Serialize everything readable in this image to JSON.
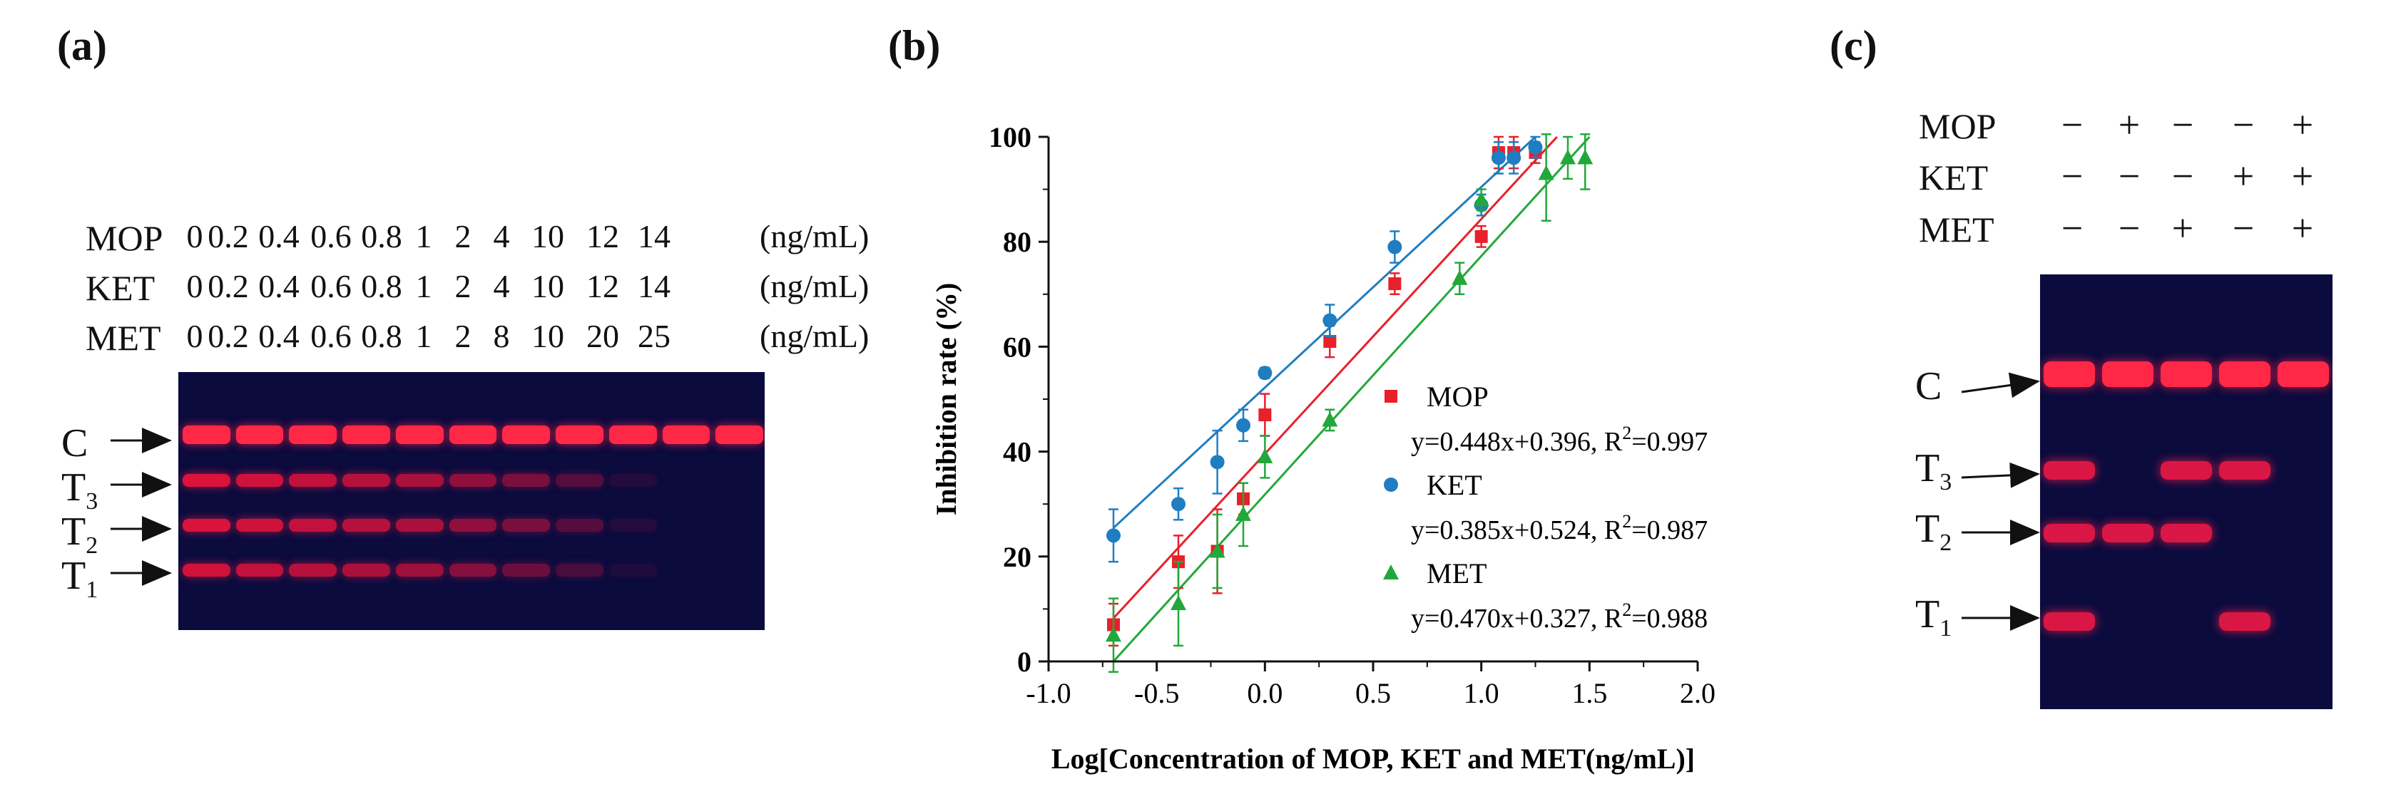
{
  "panels": {
    "a": {
      "label": "(a)",
      "rows": [
        {
          "name": "MOP",
          "values": [
            "0",
            "0.2",
            "0.4",
            "0.6",
            "0.8",
            "1",
            "2",
            "4",
            "10",
            "12",
            "14"
          ],
          "unit": "(ng/mL)"
        },
        {
          "name": "KET",
          "values": [
            "0",
            "0.2",
            "0.4",
            "0.6",
            "0.8",
            "1",
            "2",
            "4",
            "10",
            "12",
            "14"
          ],
          "unit": "(ng/mL)"
        },
        {
          "name": "MET",
          "values": [
            "0",
            "0.2",
            "0.4",
            "0.6",
            "0.8",
            "1",
            "2",
            "8",
            "10",
            "20",
            "25"
          ],
          "unit": "(ng/mL)"
        }
      ],
      "band_labels": {
        "c": "C",
        "t3": "T",
        "t3_sub": "3",
        "t2": "T",
        "t2_sub": "2",
        "t1": "T",
        "t1_sub": "1"
      },
      "band_intensity": {
        "c": [
          1,
          1,
          1,
          1,
          1,
          1,
          1,
          1,
          1,
          1,
          1
        ],
        "t3": [
          0.85,
          0.8,
          0.75,
          0.7,
          0.65,
          0.55,
          0.45,
          0.3,
          0.1,
          0,
          0
        ],
        "t2": [
          0.85,
          0.8,
          0.75,
          0.7,
          0.65,
          0.55,
          0.45,
          0.3,
          0.1,
          0,
          0
        ],
        "t1": [
          0.8,
          0.75,
          0.7,
          0.65,
          0.6,
          0.5,
          0.4,
          0.25,
          0.08,
          0,
          0
        ]
      }
    },
    "b": {
      "label": "(b)"
    },
    "c": {
      "label": "(c)",
      "rows": [
        {
          "name": "MOP",
          "signs": [
            "−",
            "+",
            "−",
            "−",
            "+"
          ]
        },
        {
          "name": "KET",
          "signs": [
            "−",
            "−",
            "−",
            "+",
            "+"
          ]
        },
        {
          "name": "MET",
          "signs": [
            "−",
            "−",
            "+",
            "−",
            "+"
          ]
        }
      ],
      "band_labels": {
        "c": "C",
        "t3": "T",
        "t3_sub": "3",
        "t2": "T",
        "t2_sub": "2",
        "t1": "T",
        "t1_sub": "1"
      },
      "band_presence": {
        "c": [
          1,
          1,
          1,
          1,
          1
        ],
        "t3": [
          1,
          0,
          1,
          1,
          0
        ],
        "t2": [
          1,
          1,
          1,
          0,
          0
        ],
        "t1": [
          1,
          0,
          0,
          1,
          0
        ]
      }
    }
  },
  "chart_data": {
    "type": "scatter",
    "xlabel": "Log[Concentration of MOP, KET and MET(ng/mL)]",
    "ylabel": "Inhibition rate (%)",
    "xlim": [
      -1.0,
      2.0
    ],
    "ylim": [
      0,
      100
    ],
    "xticks": [
      -1.0,
      -0.5,
      0.0,
      0.5,
      1.0,
      1.5,
      2.0
    ],
    "xtick_labels": [
      "-1.0",
      "-0.5",
      "0.0",
      "0.5",
      "1.0",
      "1.5",
      "2.0"
    ],
    "yticks": [
      0,
      20,
      40,
      60,
      80,
      100
    ],
    "ytick_labels": [
      "0",
      "20",
      "40",
      "60",
      "80",
      "100"
    ],
    "series": [
      {
        "name": "MOP",
        "marker": "square",
        "color": "#e8202a",
        "equation": "y=0.448x+0.396, R",
        "r2_value": "=0.997",
        "x": [
          -0.7,
          -0.4,
          -0.22,
          -0.1,
          0.0,
          0.3,
          0.6,
          1.0,
          1.08,
          1.15,
          1.25
        ],
        "y": [
          7,
          19,
          21,
          31,
          47,
          61,
          72,
          81,
          97,
          97,
          97
        ],
        "err": [
          4,
          5,
          8,
          3,
          4,
          3,
          2,
          2,
          3,
          3,
          2
        ],
        "fit": {
          "slope": 44.8,
          "intercept": 39.6,
          "x_range": [
            -0.7,
            1.35
          ]
        }
      },
      {
        "name": "KET",
        "marker": "circle",
        "color": "#1f7ec1",
        "equation": "y=0.385x+0.524, R",
        "r2_value": "=0.987",
        "x": [
          -0.7,
          -0.4,
          -0.22,
          -0.1,
          0.0,
          0.3,
          0.6,
          1.0,
          1.08,
          1.15,
          1.25
        ],
        "y": [
          24,
          30,
          38,
          45,
          55,
          65,
          79,
          87,
          96,
          96,
          98
        ],
        "err": [
          5,
          3,
          6,
          3,
          1,
          3,
          3,
          2,
          3,
          3,
          2
        ],
        "fit": {
          "slope": 38.5,
          "intercept": 52.4,
          "x_range": [
            -0.7,
            1.25
          ]
        }
      },
      {
        "name": "MET",
        "marker": "triangle",
        "color": "#22a83a",
        "equation": "y=0.470x+0.327, R",
        "r2_value": "=0.988",
        "x": [
          -0.7,
          -0.4,
          -0.22,
          -0.1,
          0.0,
          0.3,
          0.9,
          1.0,
          1.3,
          1.4,
          1.48
        ],
        "y": [
          5,
          11,
          21,
          28,
          39,
          46,
          73,
          88,
          93,
          96,
          96
        ],
        "err": [
          7,
          8,
          7,
          6,
          4,
          2,
          3,
          2,
          9,
          4,
          6
        ],
        "fit": {
          "slope": 47.0,
          "intercept": 32.7,
          "x_range": [
            -0.7,
            1.5
          ]
        }
      }
    ],
    "r2_superscript": "2"
  }
}
